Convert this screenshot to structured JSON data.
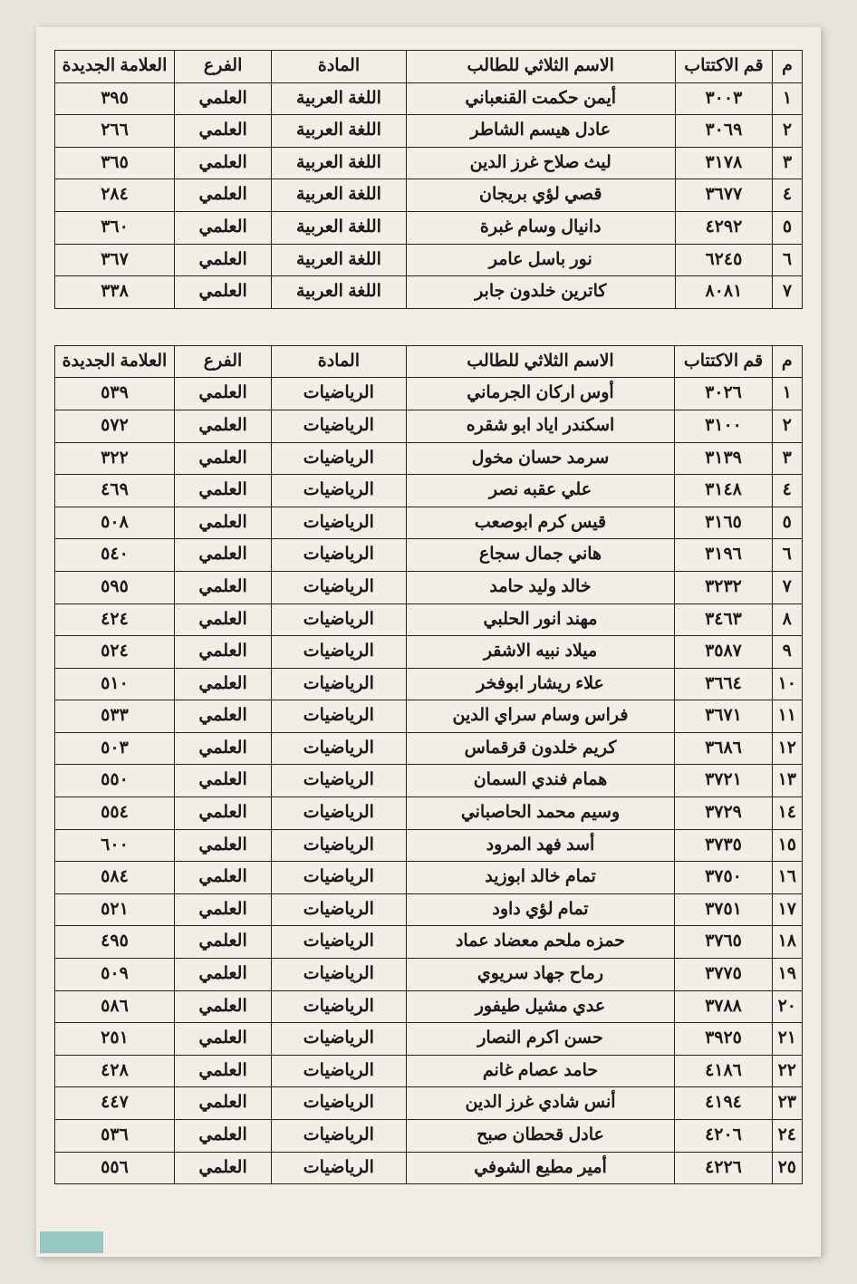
{
  "headers": {
    "m": "م",
    "id": "قم الاكتتاب",
    "name": "الاسم الثلاثي للطالب",
    "subject": "المادة",
    "branch": "الفرع",
    "grade": "العلامة الجديدة"
  },
  "table1": {
    "rows": [
      {
        "m": "١",
        "id": "٣٠٠٣",
        "name": "أيمن حكمت القنعباني",
        "subj": "اللغة العربية",
        "branch": "العلمي",
        "grade": "٣٩٥"
      },
      {
        "m": "٢",
        "id": "٣٠٦٩",
        "name": "عادل هيسم الشاطر",
        "subj": "اللغة العربية",
        "branch": "العلمي",
        "grade": "٢٦٦"
      },
      {
        "m": "٣",
        "id": "٣١٧٨",
        "name": "ليث صلاح غرز الدين",
        "subj": "اللغة العربية",
        "branch": "العلمي",
        "grade": "٣٦٥"
      },
      {
        "m": "٤",
        "id": "٣٦٧٧",
        "name": "قصي لؤي بريجان",
        "subj": "اللغة العربية",
        "branch": "العلمي",
        "grade": "٢٨٤"
      },
      {
        "m": "٥",
        "id": "٤٢٩٢",
        "name": "دانيال وسام غبرة",
        "subj": "اللغة العربية",
        "branch": "العلمي",
        "grade": "٣٦٠"
      },
      {
        "m": "٦",
        "id": "٦٢٤٥",
        "name": "نور باسل عامر",
        "subj": "اللغة العربية",
        "branch": "العلمي",
        "grade": "٣٦٧"
      },
      {
        "m": "٧",
        "id": "٨٠٨١",
        "name": "كاترين خلدون جابر",
        "subj": "اللغة العربية",
        "branch": "العلمي",
        "grade": "٣٣٨"
      }
    ]
  },
  "table2": {
    "rows": [
      {
        "m": "١",
        "id": "٣٠٢٦",
        "name": "أوس اركان الجرماني",
        "subj": "الرياضيات",
        "branch": "العلمي",
        "grade": "٥٣٩"
      },
      {
        "m": "٢",
        "id": "٣١٠٠",
        "name": "اسكندر اياد ابو شقره",
        "subj": "الرياضيات",
        "branch": "العلمي",
        "grade": "٥٧٢"
      },
      {
        "m": "٣",
        "id": "٣١٣٩",
        "name": "سرمد حسان مخول",
        "subj": "الرياضيات",
        "branch": "العلمي",
        "grade": "٣٢٢"
      },
      {
        "m": "٤",
        "id": "٣١٤٨",
        "name": "علي عقبه نصر",
        "subj": "الرياضيات",
        "branch": "العلمي",
        "grade": "٤٦٩"
      },
      {
        "m": "٥",
        "id": "٣١٦٥",
        "name": "قيس كرم ابوصعب",
        "subj": "الرياضيات",
        "branch": "العلمي",
        "grade": "٥٠٨"
      },
      {
        "m": "٦",
        "id": "٣١٩٦",
        "name": "هاني جمال سجاع",
        "subj": "الرياضيات",
        "branch": "العلمي",
        "grade": "٥٤٠"
      },
      {
        "m": "٧",
        "id": "٣٢٣٢",
        "name": "خالد وليد حامد",
        "subj": "الرياضيات",
        "branch": "العلمي",
        "grade": "٥٩٥"
      },
      {
        "m": "٨",
        "id": "٣٤٦٣",
        "name": "مهند انور الحلبي",
        "subj": "الرياضيات",
        "branch": "العلمي",
        "grade": "٤٢٤"
      },
      {
        "m": "٩",
        "id": "٣٥٨٧",
        "name": "ميلاد نبيه الاشقر",
        "subj": "الرياضيات",
        "branch": "العلمي",
        "grade": "٥٢٤"
      },
      {
        "m": "١٠",
        "id": "٣٦٦٤",
        "name": "علاء ريشار ابوفخر",
        "subj": "الرياضيات",
        "branch": "العلمي",
        "grade": "٥١٠"
      },
      {
        "m": "١١",
        "id": "٣٦٧١",
        "name": "فراس وسام سراي الدين",
        "subj": "الرياضيات",
        "branch": "العلمي",
        "grade": "٥٣٣"
      },
      {
        "m": "١٢",
        "id": "٣٦٨٦",
        "name": "كريم خلدون قرقماس",
        "subj": "الرياضيات",
        "branch": "العلمي",
        "grade": "٥٠٣"
      },
      {
        "m": "١٣",
        "id": "٣٧٢١",
        "name": "همام فندي السمان",
        "subj": "الرياضيات",
        "branch": "العلمي",
        "grade": "٥٥٠"
      },
      {
        "m": "١٤",
        "id": "٣٧٢٩",
        "name": "وسيم محمد الحاصباني",
        "subj": "الرياضيات",
        "branch": "العلمي",
        "grade": "٥٥٤"
      },
      {
        "m": "١٥",
        "id": "٣٧٣٥",
        "name": "أسد فهد المرود",
        "subj": "الرياضيات",
        "branch": "العلمي",
        "grade": "٦٠٠"
      },
      {
        "m": "١٦",
        "id": "٣٧٥٠",
        "name": "تمام خالد ابوزيد",
        "subj": "الرياضيات",
        "branch": "العلمي",
        "grade": "٥٨٤"
      },
      {
        "m": "١٧",
        "id": "٣٧٥١",
        "name": "تمام لؤي داود",
        "subj": "الرياضيات",
        "branch": "العلمي",
        "grade": "٥٢١"
      },
      {
        "m": "١٨",
        "id": "٣٧٦٥",
        "name": "حمزه ملحم معضاد عماد",
        "subj": "الرياضيات",
        "branch": "العلمي",
        "grade": "٤٩٥"
      },
      {
        "m": "١٩",
        "id": "٣٧٧٥",
        "name": "رماح جهاد سريوي",
        "subj": "الرياضيات",
        "branch": "العلمي",
        "grade": "٥٠٩"
      },
      {
        "m": "٢٠",
        "id": "٣٧٨٨",
        "name": "عدي مشيل طيفور",
        "subj": "الرياضيات",
        "branch": "العلمي",
        "grade": "٥٨٦"
      },
      {
        "m": "٢١",
        "id": "٣٩٢٥",
        "name": "حسن اكرم النصار",
        "subj": "الرياضيات",
        "branch": "العلمي",
        "grade": "٢٥١"
      },
      {
        "m": "٢٢",
        "id": "٤١٨٦",
        "name": "حامد عصام غانم",
        "subj": "الرياضيات",
        "branch": "العلمي",
        "grade": "٤٢٨"
      },
      {
        "m": "٢٣",
        "id": "٤١٩٤",
        "name": "أنس شادي غرز الدين",
        "subj": "الرياضيات",
        "branch": "العلمي",
        "grade": "٤٤٧"
      },
      {
        "m": "٢٤",
        "id": "٤٢٠٦",
        "name": "عادل قحطان صبح",
        "subj": "الرياضيات",
        "branch": "العلمي",
        "grade": "٥٣٦"
      },
      {
        "m": "٢٥",
        "id": "٤٢٢٦",
        "name": "أمير مطيع الشوفي",
        "subj": "الرياضيات",
        "branch": "العلمي",
        "grade": "٥٥٦"
      }
    ]
  }
}
